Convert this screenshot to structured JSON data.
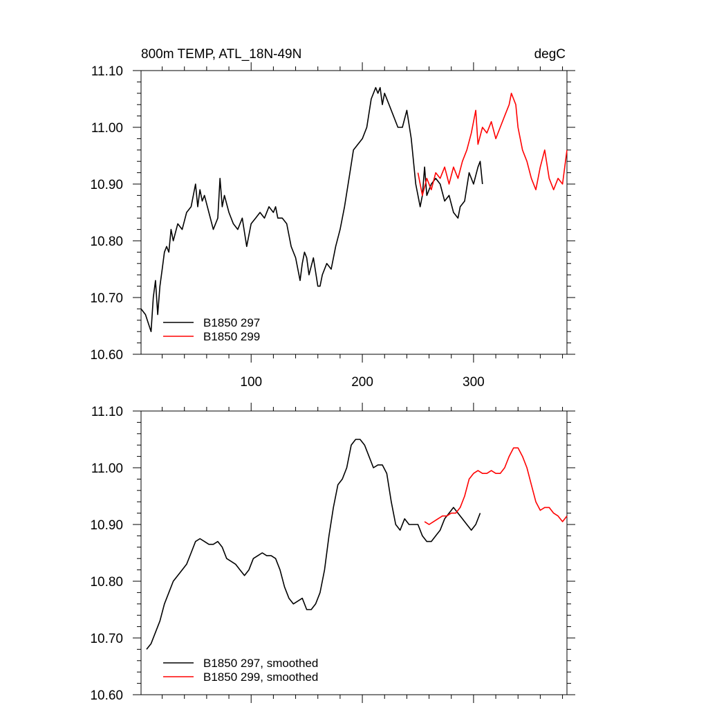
{
  "chart_data": [
    {
      "type": "line",
      "title": "800m TEMP, ATL_18N-49N",
      "units": "degC",
      "ylim": [
        10.6,
        11.1
      ],
      "xlim": [
        1,
        384
      ],
      "yticks": [
        "10.60",
        "10.70",
        "10.80",
        "10.90",
        "11.00",
        "11.10"
      ],
      "xticks": [
        "100",
        "200",
        "300"
      ],
      "legend_position": "bottom-left",
      "grid": false,
      "series": [
        {
          "name": "B1850 297",
          "color": "#000000",
          "x": [
            1,
            5,
            10,
            12,
            14,
            16,
            18,
            20,
            22,
            24,
            26,
            28,
            30,
            34,
            38,
            42,
            46,
            50,
            52,
            54,
            56,
            58,
            62,
            66,
            70,
            72,
            74,
            76,
            80,
            84,
            88,
            92,
            96,
            98,
            100,
            104,
            108,
            112,
            116,
            120,
            122,
            124,
            128,
            132,
            136,
            140,
            144,
            146,
            148,
            150,
            152,
            156,
            160,
            162,
            164,
            168,
            172,
            176,
            180,
            184,
            188,
            192,
            196,
            200,
            204,
            208,
            212,
            214,
            216,
            218,
            220,
            224,
            228,
            232,
            236,
            240,
            244,
            248,
            252,
            254,
            256,
            258,
            262,
            266,
            270,
            274,
            278,
            282,
            286,
            288,
            292,
            296,
            300,
            304,
            306,
            308
          ],
          "values": [
            10.68,
            10.67,
            10.64,
            10.7,
            10.73,
            10.67,
            10.72,
            10.75,
            10.78,
            10.79,
            10.78,
            10.82,
            10.8,
            10.83,
            10.82,
            10.85,
            10.86,
            10.9,
            10.86,
            10.89,
            10.87,
            10.88,
            10.85,
            10.82,
            10.84,
            10.91,
            10.86,
            10.88,
            10.85,
            10.83,
            10.82,
            10.84,
            10.79,
            10.81,
            10.83,
            10.84,
            10.85,
            10.84,
            10.86,
            10.85,
            10.86,
            10.84,
            10.84,
            10.83,
            10.79,
            10.77,
            10.73,
            10.76,
            10.78,
            10.77,
            10.74,
            10.77,
            10.72,
            10.72,
            10.74,
            10.76,
            10.75,
            10.79,
            10.82,
            10.86,
            10.91,
            10.96,
            10.97,
            10.98,
            11.0,
            11.05,
            11.07,
            11.06,
            11.07,
            11.04,
            11.06,
            11.04,
            11.02,
            11.0,
            11.0,
            11.03,
            10.98,
            10.9,
            10.86,
            10.88,
            10.93,
            10.88,
            10.9,
            10.91,
            10.9,
            10.87,
            10.88,
            10.85,
            10.84,
            10.86,
            10.87,
            10.92,
            10.9,
            10.93,
            10.94,
            10.9
          ]
        },
        {
          "name": "B1850 299",
          "color": "#ff0000",
          "x": [
            250,
            254,
            258,
            262,
            266,
            270,
            274,
            278,
            282,
            286,
            290,
            294,
            298,
            302,
            304,
            308,
            312,
            316,
            320,
            324,
            328,
            332,
            334,
            336,
            338,
            340,
            344,
            348,
            352,
            356,
            360,
            364,
            368,
            372,
            376,
            380,
            384
          ],
          "values": [
            10.92,
            10.88,
            10.91,
            10.89,
            10.92,
            10.91,
            10.93,
            10.9,
            10.93,
            10.91,
            10.94,
            10.96,
            10.99,
            11.03,
            10.97,
            11.0,
            10.99,
            11.01,
            10.98,
            11.0,
            11.02,
            11.04,
            11.06,
            11.05,
            11.04,
            11.0,
            10.96,
            10.94,
            10.91,
            10.89,
            10.93,
            10.96,
            10.91,
            10.89,
            10.91,
            10.9,
            10.96
          ]
        }
      ]
    },
    {
      "type": "line",
      "ylim": [
        10.6,
        11.1
      ],
      "xlim": [
        1,
        384
      ],
      "yticks": [
        "10.60",
        "10.70",
        "10.80",
        "10.90",
        "11.00",
        "11.10"
      ],
      "xticks": [],
      "legend_position": "bottom-left",
      "grid": false,
      "series": [
        {
          "name": "B1850 297, smoothed",
          "color": "#000000",
          "x": [
            6,
            10,
            14,
            18,
            22,
            26,
            30,
            34,
            38,
            42,
            46,
            50,
            54,
            58,
            62,
            66,
            70,
            74,
            78,
            82,
            86,
            90,
            94,
            98,
            102,
            106,
            110,
            114,
            118,
            122,
            126,
            130,
            134,
            138,
            142,
            146,
            150,
            154,
            158,
            162,
            166,
            170,
            174,
            178,
            182,
            186,
            190,
            194,
            198,
            202,
            206,
            210,
            214,
            218,
            222,
            226,
            230,
            234,
            238,
            242,
            246,
            250,
            254,
            258,
            262,
            266,
            270,
            274,
            278,
            282,
            286,
            290,
            294,
            298,
            302,
            306
          ],
          "values": [
            10.68,
            10.69,
            10.71,
            10.73,
            10.76,
            10.78,
            10.8,
            10.81,
            10.82,
            10.83,
            10.85,
            10.87,
            10.875,
            10.87,
            10.865,
            10.865,
            10.87,
            10.86,
            10.84,
            10.835,
            10.83,
            10.82,
            10.81,
            10.82,
            10.84,
            10.845,
            10.85,
            10.845,
            10.845,
            10.84,
            10.82,
            10.79,
            10.77,
            10.76,
            10.765,
            10.77,
            10.75,
            10.75,
            10.76,
            10.78,
            10.82,
            10.88,
            10.93,
            10.97,
            10.98,
            11.0,
            11.04,
            11.05,
            11.05,
            11.04,
            11.02,
            11.0,
            11.005,
            11.005,
            10.99,
            10.94,
            10.9,
            10.89,
            10.91,
            10.9,
            10.9,
            10.9,
            10.88,
            10.87,
            10.87,
            10.88,
            10.89,
            10.91,
            10.92,
            10.93,
            10.92,
            10.91,
            10.9,
            10.89,
            10.9,
            10.92
          ]
        },
        {
          "name": "B1850 299, smoothed",
          "color": "#ff0000",
          "x": [
            256,
            260,
            264,
            268,
            272,
            276,
            280,
            284,
            288,
            292,
            296,
            300,
            304,
            308,
            312,
            316,
            320,
            324,
            328,
            332,
            336,
            340,
            344,
            348,
            352,
            356,
            360,
            364,
            368,
            372,
            376,
            380,
            384
          ],
          "values": [
            10.905,
            10.9,
            10.905,
            10.91,
            10.915,
            10.915,
            10.92,
            10.92,
            10.93,
            10.95,
            10.98,
            10.99,
            10.995,
            10.99,
            10.99,
            10.995,
            10.99,
            10.99,
            11.0,
            11.02,
            11.035,
            11.035,
            11.02,
            11.0,
            10.97,
            10.94,
            10.925,
            10.93,
            10.93,
            10.92,
            10.915,
            10.905,
            10.915
          ]
        }
      ]
    }
  ]
}
